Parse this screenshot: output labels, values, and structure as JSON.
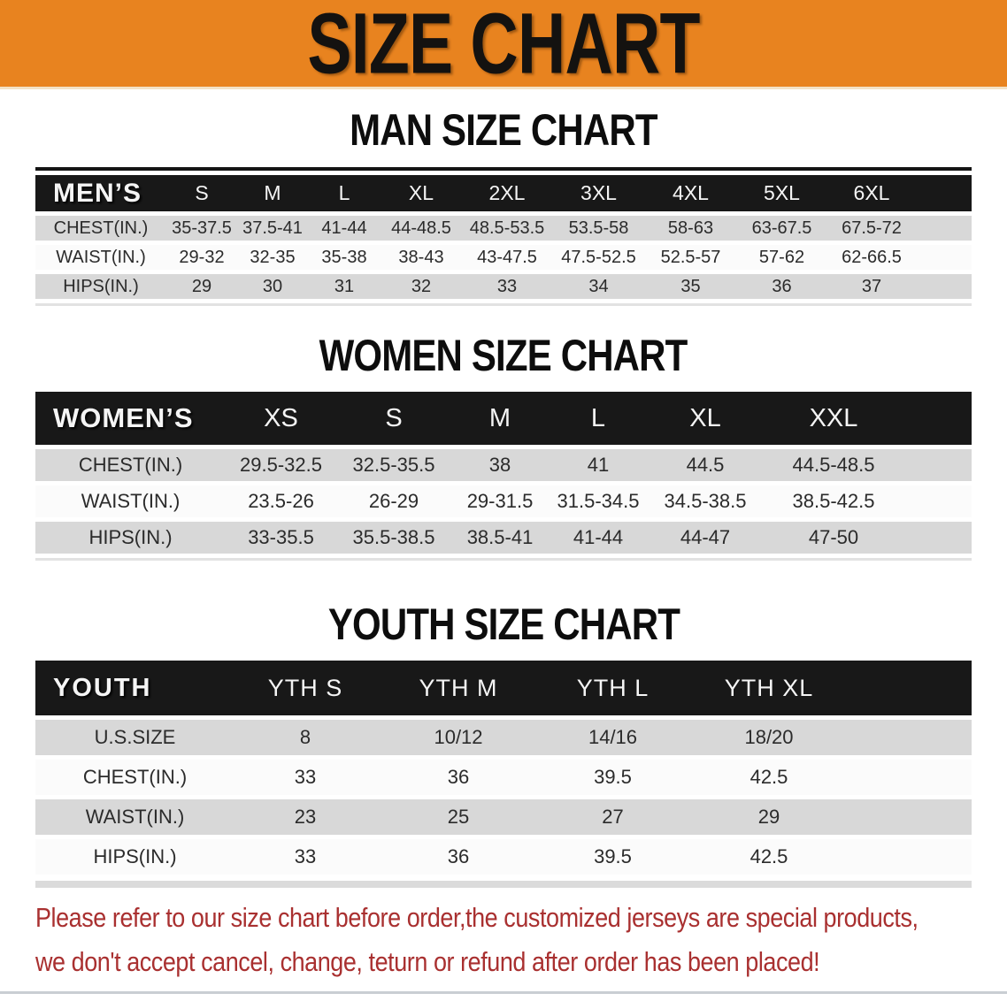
{
  "banner": {
    "title": "SIZE CHART"
  },
  "colors": {
    "banner_bg": "#E8831F",
    "header_bar": "#181818",
    "row_shaded": "#D8D8D8",
    "row_plain": "#FBFBFB",
    "notice_text": "#A93030"
  },
  "sections": {
    "men": {
      "heading": "MAN SIZE CHART",
      "table": {
        "header_label": "MEN’S",
        "columns": [
          "S",
          "M",
          "L",
          "XL",
          "2XL",
          "3XL",
          "4XL",
          "5XL",
          "6XL"
        ],
        "rows": [
          {
            "label": "CHEST(IN.)",
            "values": [
              "35-37.5",
              "37.5-41",
              "41-44",
              "44-48.5",
              "48.5-53.5",
              "53.5-58",
              "58-63",
              "63-67.5",
              "67.5-72"
            ]
          },
          {
            "label": "WAIST(IN.)",
            "values": [
              "29-32",
              "32-35",
              "35-38",
              "38-43",
              "43-47.5",
              "47.5-52.5",
              "52.5-57",
              "57-62",
              "62-66.5"
            ]
          },
          {
            "label": "HIPS(IN.)",
            "values": [
              "29",
              "30",
              "31",
              "32",
              "33",
              "34",
              "35",
              "36",
              "37"
            ]
          }
        ]
      }
    },
    "women": {
      "heading": "WOMEN SIZE CHART",
      "table": {
        "header_label": "WOMEN’S",
        "columns": [
          "XS",
          "S",
          "M",
          "L",
          "XL",
          "XXL"
        ],
        "rows": [
          {
            "label": "CHEST(IN.)",
            "values": [
              "29.5-32.5",
              "32.5-35.5",
              "38",
              "41",
              "44.5",
              "44.5-48.5"
            ]
          },
          {
            "label": "WAIST(IN.)",
            "values": [
              "23.5-26",
              "26-29",
              "29-31.5",
              "31.5-34.5",
              "34.5-38.5",
              "38.5-42.5"
            ]
          },
          {
            "label": "HIPS(IN.)",
            "values": [
              "33-35.5",
              "35.5-38.5",
              "38.5-41",
              "41-44",
              "44-47",
              "47-50"
            ]
          }
        ]
      }
    },
    "youth": {
      "heading": "YOUTH SIZE CHART",
      "table": {
        "header_label": "YOUTH",
        "columns": [
          "YTH S",
          "YTH M",
          "YTH L",
          "YTH XL"
        ],
        "rows": [
          {
            "label": "U.S.SIZE",
            "values": [
              "8",
              "10/12",
              "14/16",
              "18/20"
            ]
          },
          {
            "label": "CHEST(IN.)",
            "values": [
              "33",
              "36",
              "39.5",
              "42.5"
            ]
          },
          {
            "label": "WAIST(IN.)",
            "values": [
              "23",
              "25",
              "27",
              "29"
            ]
          },
          {
            "label": "HIPS(IN.)",
            "values": [
              "33",
              "36",
              "39.5",
              "42.5"
            ]
          }
        ]
      }
    }
  },
  "footer": {
    "line1": "Please refer to our size chart before order,the customized jerseys are special products,",
    "line2": "we don't accept cancel, change, teturn or refund after order has been placed!"
  }
}
